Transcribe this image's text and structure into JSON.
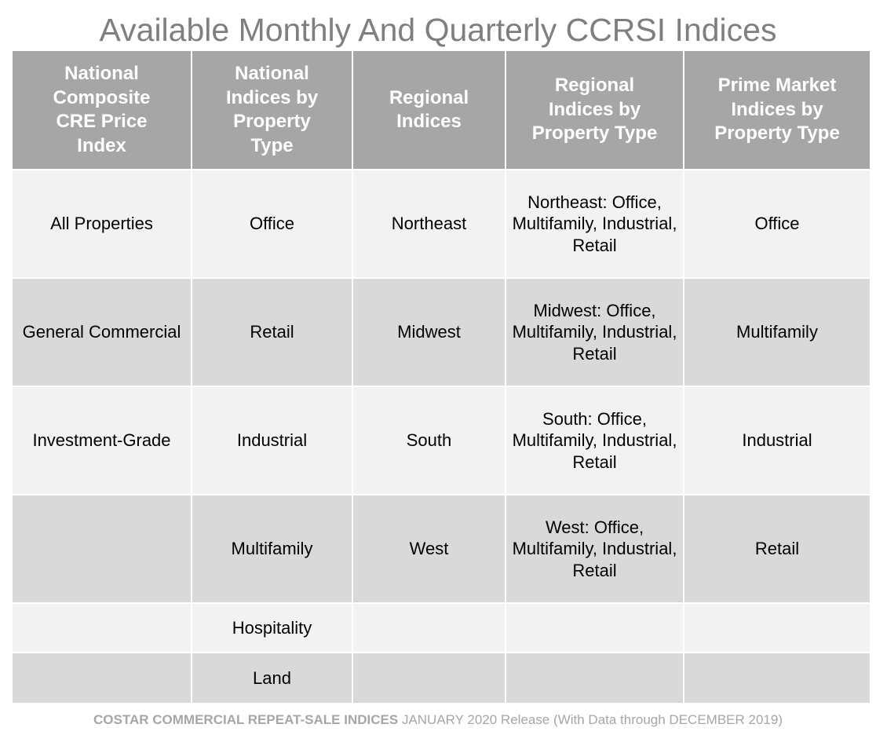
{
  "title": "Available Monthly And Quarterly CCRSI Indices",
  "headers": [
    "National Composite CRE Price Index",
    "National Indices by Property Type",
    "Regional Indices",
    "Regional Indices by Property Type",
    "Prime Market Indices by Property Type"
  ],
  "rows": [
    [
      "All Properties",
      "Office",
      "Northeast",
      "Northeast: Office, Multifamily, Industrial, Retail",
      "Office"
    ],
    [
      "General Commercial",
      "Retail",
      "Midwest",
      "Midwest: Office, Multifamily, Industrial, Retail",
      "Multifamily"
    ],
    [
      "Investment-Grade",
      "Industrial",
      "South",
      "South: Office, Multifamily, Industrial, Retail",
      "Industrial"
    ],
    [
      "",
      "Multifamily",
      "West",
      "West: Office, Multifamily, Industrial, Retail",
      "Retail"
    ],
    [
      "",
      "Hospitality",
      "",
      "",
      ""
    ],
    [
      "",
      "Land",
      "",
      "",
      ""
    ]
  ],
  "footer": {
    "brand": "COSTAR COMMERCIAL REPEAT-SALE INDICES",
    "release": "JANUARY 2020 Release (With Data through DECEMBER 2019)"
  },
  "colors": {
    "header_bg": "#a6a6a6",
    "row_light": "#f2f2f2",
    "row_dark": "#d9d9d9",
    "title_text": "#7f7f7f",
    "footer_text": "#a6a6a6"
  }
}
